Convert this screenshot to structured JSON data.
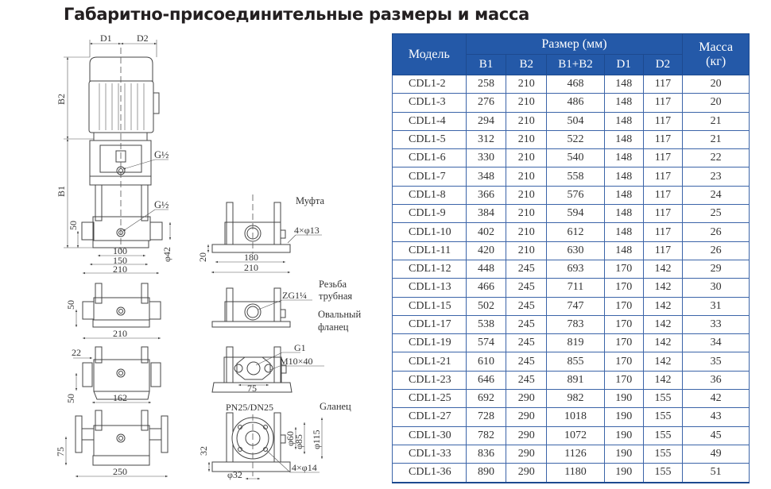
{
  "title": "Габаритно-присоединительные размеры и масса",
  "drawings": {
    "main": {
      "D1": "D1",
      "D2": "D2",
      "B1": "B1",
      "B2": "B2",
      "G_top": "G½",
      "G_bottom": "G½",
      "h50": "50",
      "phi42": "φ42",
      "w100": "100",
      "w150": "150",
      "w210": "210"
    },
    "view_a": {
      "h50": "50",
      "w210": "210"
    },
    "view_b": {
      "w22": "22",
      "h50": "50",
      "w162": "162"
    },
    "view_c": {
      "h75": "75",
      "w250": "250"
    },
    "coupling": {
      "label": "Муфта",
      "holes": "4×φ13",
      "h20": "20",
      "w180": "180",
      "w210": "210"
    },
    "thread": {
      "label1": "Резьба",
      "label2": "трубная",
      "thread": "ZG1¼"
    },
    "oval": {
      "label1": "Овальный",
      "label2": "фланец",
      "g1": "G1",
      "bolt": "M10×40",
      "w75": "75"
    },
    "flange": {
      "label": "Gланец",
      "pn": "PN25/DN25",
      "phi60": "φ60",
      "phi85": "φ85",
      "phi115": "φ115",
      "h32": "32",
      "phi32": "φ32",
      "holes": "4×φ14"
    }
  },
  "table": {
    "headers": {
      "model": "Модель",
      "size": "Размер (мм)",
      "mass": "Масса (кг)",
      "b1": "B1",
      "b2": "B2",
      "b1b2": "B1+B2",
      "d1": "D1",
      "d2": "D2"
    },
    "rows": [
      [
        "CDL1-2",
        "258",
        "210",
        "468",
        "148",
        "117",
        "20"
      ],
      [
        "CDL1-3",
        "276",
        "210",
        "486",
        "148",
        "117",
        "20"
      ],
      [
        "CDL1-4",
        "294",
        "210",
        "504",
        "148",
        "117",
        "21"
      ],
      [
        "CDL1-5",
        "312",
        "210",
        "522",
        "148",
        "117",
        "21"
      ],
      [
        "CDL1-6",
        "330",
        "210",
        "540",
        "148",
        "117",
        "22"
      ],
      [
        "CDL1-7",
        "348",
        "210",
        "558",
        "148",
        "117",
        "23"
      ],
      [
        "CDL1-8",
        "366",
        "210",
        "576",
        "148",
        "117",
        "24"
      ],
      [
        "CDL1-9",
        "384",
        "210",
        "594",
        "148",
        "117",
        "25"
      ],
      [
        "CDL1-10",
        "402",
        "210",
        "612",
        "148",
        "117",
        "26"
      ],
      [
        "CDL1-11",
        "420",
        "210",
        "630",
        "148",
        "117",
        "26"
      ],
      [
        "CDL1-12",
        "448",
        "245",
        "693",
        "170",
        "142",
        "29"
      ],
      [
        "CDL1-13",
        "466",
        "245",
        "711",
        "170",
        "142",
        "30"
      ],
      [
        "CDL1-15",
        "502",
        "245",
        "747",
        "170",
        "142",
        "31"
      ],
      [
        "CDL1-17",
        "538",
        "245",
        "783",
        "170",
        "142",
        "33"
      ],
      [
        "CDL1-19",
        "574",
        "245",
        "819",
        "170",
        "142",
        "34"
      ],
      [
        "CDL1-21",
        "610",
        "245",
        "855",
        "170",
        "142",
        "35"
      ],
      [
        "CDL1-23",
        "646",
        "245",
        "891",
        "170",
        "142",
        "36"
      ],
      [
        "CDL1-25",
        "692",
        "290",
        "982",
        "190",
        "155",
        "42"
      ],
      [
        "CDL1-27",
        "728",
        "290",
        "1018",
        "190",
        "155",
        "43"
      ],
      [
        "CDL1-30",
        "782",
        "290",
        "1072",
        "190",
        "155",
        "45"
      ],
      [
        "CDL1-33",
        "836",
        "290",
        "1126",
        "190",
        "155",
        "49"
      ],
      [
        "CDL1-36",
        "890",
        "290",
        "1180",
        "190",
        "155",
        "51"
      ]
    ]
  },
  "colors": {
    "header_bg": "#2459a8",
    "grid": "#3b64a8"
  }
}
